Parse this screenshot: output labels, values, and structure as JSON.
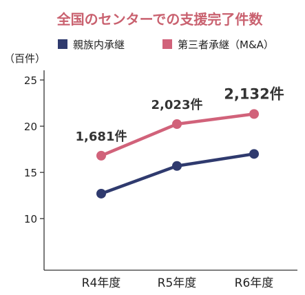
{
  "chart_data": {
    "type": "line",
    "title": "全国のセンターでの支援完了件数",
    "ylabel": "（百件）",
    "categories": [
      "R4年度",
      "R5年度",
      "R6年度"
    ],
    "yticks": [
      10,
      15,
      20,
      25
    ],
    "ylim": [
      6,
      27
    ],
    "series": [
      {
        "name": "親族内承継",
        "values": [
          12.7,
          15.7,
          17.0
        ],
        "color": "#2f3a6e"
      },
      {
        "name": "第三者承継（M&A）",
        "values": [
          16.81,
          20.23,
          21.32
        ],
        "color": "#d1627a"
      }
    ],
    "data_labels": [
      {
        "series": 1,
        "index": 0,
        "text": "1,681件"
      },
      {
        "series": 1,
        "index": 1,
        "text": "2,023件"
      },
      {
        "series": 1,
        "index": 2,
        "text": "2,132件"
      }
    ],
    "title_color": "#c9616f",
    "legend_position": "top"
  }
}
